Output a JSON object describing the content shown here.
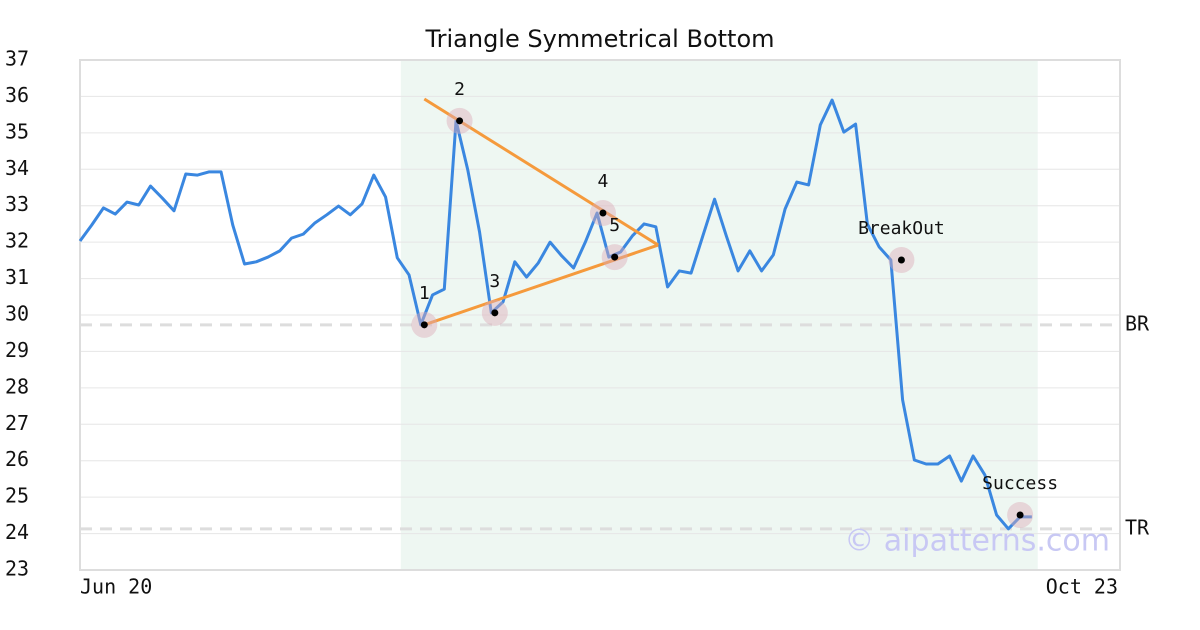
{
  "chart_data": {
    "type": "line",
    "title": "Triangle Symmetrical Bottom",
    "values": [
      32.03,
      32.47,
      32.94,
      32.77,
      33.1,
      33.02,
      33.54,
      33.21,
      32.86,
      33.87,
      33.84,
      33.93,
      33.93,
      32.47,
      31.4,
      31.46,
      31.59,
      31.76,
      32.11,
      32.22,
      32.53,
      32.75,
      32.99,
      32.75,
      33.05,
      33.84,
      33.24,
      31.57,
      31.1,
      29.73,
      30.55,
      30.71,
      35.33,
      33.98,
      32.28,
      30.06,
      30.36,
      31.46,
      31.04,
      31.43,
      32.0,
      31.62,
      31.29,
      32.0,
      32.8,
      31.59,
      31.73,
      32.17,
      32.5,
      32.42,
      30.77,
      31.21,
      31.15,
      32.17,
      33.18,
      32.17,
      31.21,
      31.76,
      31.21,
      31.65,
      32.91,
      33.65,
      33.57,
      35.22,
      35.9,
      35.02,
      35.24,
      32.5,
      31.87,
      31.51,
      27.67,
      26.02,
      25.91,
      25.91,
      26.13,
      25.44,
      26.13,
      25.61,
      24.51,
      24.13,
      24.46,
      24.46
    ],
    "color": "#3a87e0",
    "x_axis_labels": [
      "Jun 20",
      "Oct 23"
    ],
    "xlim": [
      0,
      88.5
    ],
    "ylim": [
      23,
      37
    ],
    "yticks": [
      23,
      24,
      25,
      26,
      27,
      28,
      29,
      30,
      31,
      32,
      33,
      34,
      35,
      36,
      37
    ],
    "grid": true,
    "shaded_range": [
      27.3,
      81.5
    ],
    "trendlines": [
      {
        "color": "#f59a3c",
        "x": [
          29.3,
          49.2
        ],
        "y": [
          35.93,
          31.92
        ]
      },
      {
        "color": "#f59a3c",
        "x": [
          29.3,
          49.2
        ],
        "y": [
          29.73,
          31.92
        ]
      }
    ],
    "annotations": [
      {
        "label": "1",
        "x": 29.3,
        "y": 29.73
      },
      {
        "label": "2",
        "x": 32.3,
        "y": 35.33
      },
      {
        "label": "3",
        "x": 35.3,
        "y": 30.06
      },
      {
        "label": "4",
        "x": 44.5,
        "y": 32.8
      },
      {
        "label": "5",
        "x": 45.5,
        "y": 31.59
      },
      {
        "label": "BreakOut",
        "x": 69.9,
        "y": 31.51
      },
      {
        "label": "Success",
        "x": 80.0,
        "y": 24.51
      }
    ],
    "ref_lines": [
      {
        "label": "BR",
        "value": 29.73
      },
      {
        "label": "TR",
        "value": 24.13
      }
    ],
    "watermark": "© aipatterns.com"
  }
}
